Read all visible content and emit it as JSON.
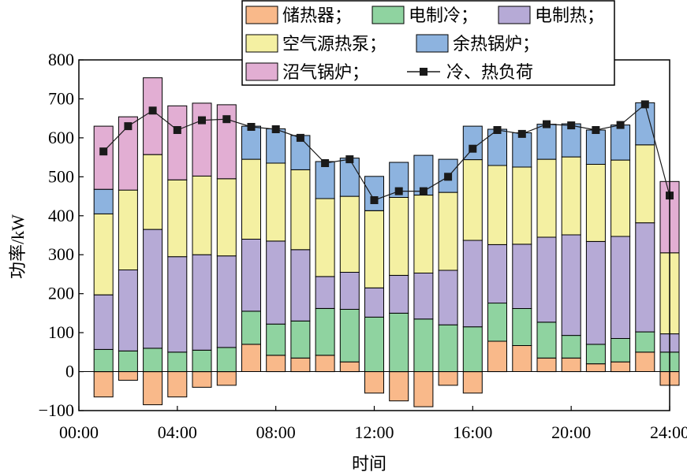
{
  "chart_data": {
    "type": "bar",
    "subtype": "stacked-bar-with-line",
    "title": "",
    "xlabel": "时间",
    "ylabel": "功率/kW",
    "xlim": [
      0,
      24
    ],
    "ylim": [
      -100,
      800
    ],
    "x_ticks": [
      "00:00",
      "04:00",
      "08:00",
      "12:00",
      "16:00",
      "20:00",
      "24:00"
    ],
    "y_ticks": [
      "800",
      "700",
      "600",
      "500",
      "400",
      "300",
      "200",
      "100",
      "0",
      "−100"
    ],
    "grid": false,
    "legend_position": "top-right",
    "hours": [
      1,
      2,
      3,
      4,
      5,
      6,
      7,
      8,
      9,
      10,
      11,
      12,
      13,
      14,
      15,
      16,
      17,
      18,
      19,
      20,
      21,
      22,
      23,
      24
    ],
    "series": [
      {
        "name": "储热器",
        "label": "储热器；",
        "color": "#F9B98A",
        "values": [
          -65,
          -22,
          -85,
          -65,
          -40,
          -35,
          70,
          42,
          35,
          42,
          25,
          -55,
          -75,
          -90,
          -35,
          -55,
          78,
          67,
          35,
          35,
          20,
          25,
          50,
          -35
        ]
      },
      {
        "name": "电制冷",
        "label": "电制冷；",
        "color": "#8FD3A0",
        "values": [
          57,
          53,
          60,
          50,
          55,
          62,
          85,
          80,
          95,
          120,
          135,
          140,
          150,
          135,
          120,
          115,
          98,
          95,
          92,
          58,
          50,
          60,
          52,
          50
        ]
      },
      {
        "name": "电制热",
        "label": "电制热；",
        "color": "#B6AAD6",
        "values": [
          140,
          208,
          305,
          245,
          245,
          235,
          185,
          213,
          183,
          82,
          95,
          75,
          97,
          118,
          140,
          222,
          150,
          165,
          218,
          258,
          264,
          262,
          280,
          47
        ]
      },
      {
        "name": "空气源热泵",
        "label": "空气源热泵；",
        "color": "#F4F0A2",
        "values": [
          208,
          205,
          192,
          197,
          202,
          198,
          205,
          200,
          205,
          200,
          195,
          198,
          200,
          200,
          200,
          207,
          203,
          198,
          200,
          200,
          198,
          196,
          200,
          208
        ]
      },
      {
        "name": "余热锅炉",
        "label": "余热锅炉；",
        "color": "#8DB3DF",
        "values": [
          63,
          0,
          0,
          0,
          0,
          0,
          85,
          88,
          88,
          95,
          98,
          88,
          90,
          102,
          85,
          86,
          93,
          88,
          90,
          85,
          88,
          90,
          108,
          0
        ]
      },
      {
        "name": "沼气锅炉",
        "label": "沼气锅炉；",
        "color": "#E2AED3",
        "values": [
          162,
          188,
          197,
          190,
          187,
          190,
          0,
          0,
          0,
          0,
          0,
          0,
          0,
          0,
          0,
          0,
          0,
          0,
          0,
          0,
          0,
          0,
          0,
          183
        ]
      }
    ],
    "line_series": {
      "name": "冷、热负荷",
      "color": "#1A1A1A",
      "values": [
        565,
        630,
        670,
        620,
        645,
        648,
        628,
        622,
        600,
        535,
        545,
        440,
        463,
        463,
        500,
        572,
        620,
        610,
        635,
        632,
        620,
        633,
        686,
        452
      ]
    }
  }
}
